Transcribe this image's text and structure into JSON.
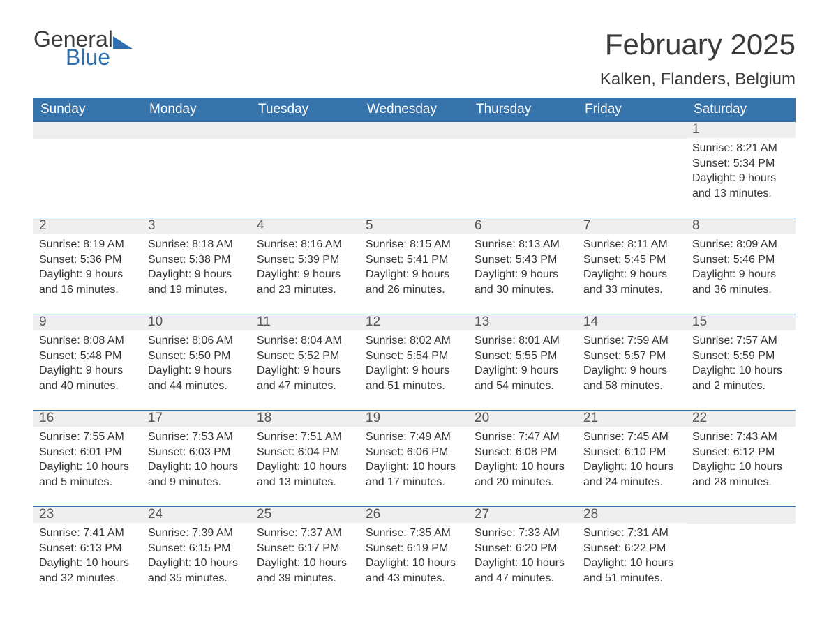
{
  "logo": {
    "word1": "General",
    "word2": "Blue"
  },
  "header": {
    "month_title": "February 2025",
    "location": "Kalken, Flanders, Belgium"
  },
  "styling": {
    "header_bg": "#3874ac",
    "header_text": "#ffffff",
    "daynum_bg": "#efefef",
    "daynum_text": "#555555",
    "body_text": "#333333",
    "row_border": "#3874ac",
    "page_bg": "#ffffff",
    "logo_blue": "#2f6fb0",
    "month_title_fontsize": 42,
    "location_fontsize": 24,
    "dow_fontsize": 19,
    "daynum_fontsize": 19,
    "body_fontsize": 16
  },
  "days_of_week": [
    "Sunday",
    "Monday",
    "Tuesday",
    "Wednesday",
    "Thursday",
    "Friday",
    "Saturday"
  ],
  "weeks": [
    [
      null,
      null,
      null,
      null,
      null,
      null,
      {
        "n": "1",
        "sunrise": "Sunrise: 8:21 AM",
        "sunset": "Sunset: 5:34 PM",
        "daylight": "Daylight: 9 hours and 13 minutes."
      }
    ],
    [
      {
        "n": "2",
        "sunrise": "Sunrise: 8:19 AM",
        "sunset": "Sunset: 5:36 PM",
        "daylight": "Daylight: 9 hours and 16 minutes."
      },
      {
        "n": "3",
        "sunrise": "Sunrise: 8:18 AM",
        "sunset": "Sunset: 5:38 PM",
        "daylight": "Daylight: 9 hours and 19 minutes."
      },
      {
        "n": "4",
        "sunrise": "Sunrise: 8:16 AM",
        "sunset": "Sunset: 5:39 PM",
        "daylight": "Daylight: 9 hours and 23 minutes."
      },
      {
        "n": "5",
        "sunrise": "Sunrise: 8:15 AM",
        "sunset": "Sunset: 5:41 PM",
        "daylight": "Daylight: 9 hours and 26 minutes."
      },
      {
        "n": "6",
        "sunrise": "Sunrise: 8:13 AM",
        "sunset": "Sunset: 5:43 PM",
        "daylight": "Daylight: 9 hours and 30 minutes."
      },
      {
        "n": "7",
        "sunrise": "Sunrise: 8:11 AM",
        "sunset": "Sunset: 5:45 PM",
        "daylight": "Daylight: 9 hours and 33 minutes."
      },
      {
        "n": "8",
        "sunrise": "Sunrise: 8:09 AM",
        "sunset": "Sunset: 5:46 PM",
        "daylight": "Daylight: 9 hours and 36 minutes."
      }
    ],
    [
      {
        "n": "9",
        "sunrise": "Sunrise: 8:08 AM",
        "sunset": "Sunset: 5:48 PM",
        "daylight": "Daylight: 9 hours and 40 minutes."
      },
      {
        "n": "10",
        "sunrise": "Sunrise: 8:06 AM",
        "sunset": "Sunset: 5:50 PM",
        "daylight": "Daylight: 9 hours and 44 minutes."
      },
      {
        "n": "11",
        "sunrise": "Sunrise: 8:04 AM",
        "sunset": "Sunset: 5:52 PM",
        "daylight": "Daylight: 9 hours and 47 minutes."
      },
      {
        "n": "12",
        "sunrise": "Sunrise: 8:02 AM",
        "sunset": "Sunset: 5:54 PM",
        "daylight": "Daylight: 9 hours and 51 minutes."
      },
      {
        "n": "13",
        "sunrise": "Sunrise: 8:01 AM",
        "sunset": "Sunset: 5:55 PM",
        "daylight": "Daylight: 9 hours and 54 minutes."
      },
      {
        "n": "14",
        "sunrise": "Sunrise: 7:59 AM",
        "sunset": "Sunset: 5:57 PM",
        "daylight": "Daylight: 9 hours and 58 minutes."
      },
      {
        "n": "15",
        "sunrise": "Sunrise: 7:57 AM",
        "sunset": "Sunset: 5:59 PM",
        "daylight": "Daylight: 10 hours and 2 minutes."
      }
    ],
    [
      {
        "n": "16",
        "sunrise": "Sunrise: 7:55 AM",
        "sunset": "Sunset: 6:01 PM",
        "daylight": "Daylight: 10 hours and 5 minutes."
      },
      {
        "n": "17",
        "sunrise": "Sunrise: 7:53 AM",
        "sunset": "Sunset: 6:03 PM",
        "daylight": "Daylight: 10 hours and 9 minutes."
      },
      {
        "n": "18",
        "sunrise": "Sunrise: 7:51 AM",
        "sunset": "Sunset: 6:04 PM",
        "daylight": "Daylight: 10 hours and 13 minutes."
      },
      {
        "n": "19",
        "sunrise": "Sunrise: 7:49 AM",
        "sunset": "Sunset: 6:06 PM",
        "daylight": "Daylight: 10 hours and 17 minutes."
      },
      {
        "n": "20",
        "sunrise": "Sunrise: 7:47 AM",
        "sunset": "Sunset: 6:08 PM",
        "daylight": "Daylight: 10 hours and 20 minutes."
      },
      {
        "n": "21",
        "sunrise": "Sunrise: 7:45 AM",
        "sunset": "Sunset: 6:10 PM",
        "daylight": "Daylight: 10 hours and 24 minutes."
      },
      {
        "n": "22",
        "sunrise": "Sunrise: 7:43 AM",
        "sunset": "Sunset: 6:12 PM",
        "daylight": "Daylight: 10 hours and 28 minutes."
      }
    ],
    [
      {
        "n": "23",
        "sunrise": "Sunrise: 7:41 AM",
        "sunset": "Sunset: 6:13 PM",
        "daylight": "Daylight: 10 hours and 32 minutes."
      },
      {
        "n": "24",
        "sunrise": "Sunrise: 7:39 AM",
        "sunset": "Sunset: 6:15 PM",
        "daylight": "Daylight: 10 hours and 35 minutes."
      },
      {
        "n": "25",
        "sunrise": "Sunrise: 7:37 AM",
        "sunset": "Sunset: 6:17 PM",
        "daylight": "Daylight: 10 hours and 39 minutes."
      },
      {
        "n": "26",
        "sunrise": "Sunrise: 7:35 AM",
        "sunset": "Sunset: 6:19 PM",
        "daylight": "Daylight: 10 hours and 43 minutes."
      },
      {
        "n": "27",
        "sunrise": "Sunrise: 7:33 AM",
        "sunset": "Sunset: 6:20 PM",
        "daylight": "Daylight: 10 hours and 47 minutes."
      },
      {
        "n": "28",
        "sunrise": "Sunrise: 7:31 AM",
        "sunset": "Sunset: 6:22 PM",
        "daylight": "Daylight: 10 hours and 51 minutes."
      },
      null
    ]
  ]
}
